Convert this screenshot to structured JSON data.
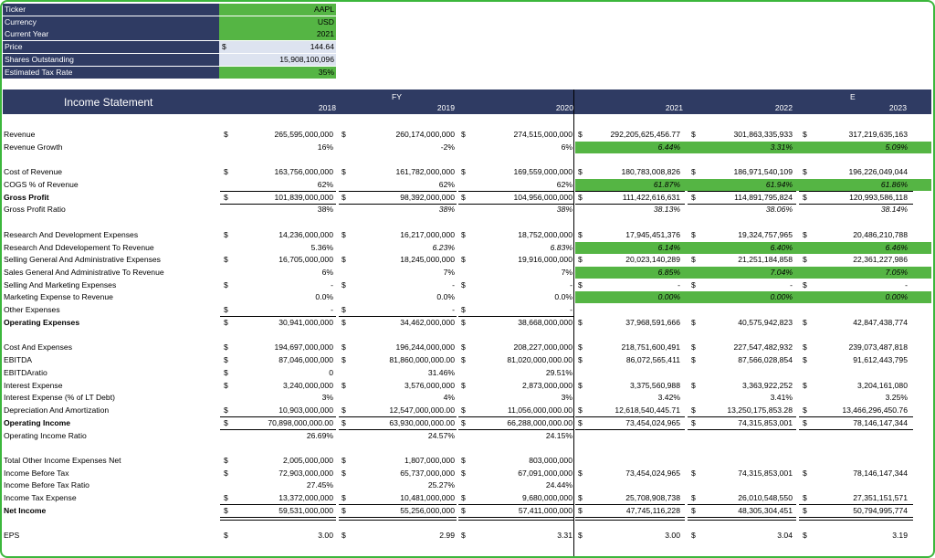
{
  "inputs": [
    {
      "label": "Ticker",
      "value": "AAPL",
      "currency": "",
      "fill": "green"
    },
    {
      "label": "Currency",
      "value": "USD",
      "currency": "",
      "fill": "green"
    },
    {
      "label": "Current Year",
      "value": "2021",
      "currency": "",
      "fill": "green"
    },
    {
      "label": "Price",
      "value": "144.64",
      "currency": "$",
      "fill": "lav"
    },
    {
      "label": "Shares Outstanding",
      "value": "15,908,100,096",
      "currency": "",
      "fill": "lav"
    },
    {
      "label": "Estimated Tax Rate",
      "value": "35%",
      "currency": "",
      "fill": "green"
    }
  ],
  "header": {
    "title": "Income Statement",
    "hist_group": "FY",
    "proj_group": "E",
    "years": [
      "2018",
      "2019",
      "2020",
      "2021",
      "2022",
      "2023"
    ]
  },
  "rows": [
    {
      "label": "Revenue",
      "bold": false,
      "italic": false,
      "cur": [
        1,
        1,
        1,
        1,
        1,
        1
      ],
      "vals": [
        "265,595,000,000",
        "260,174,000,000",
        "274,515,000,000",
        "292,205,625,456.77",
        "301,863,335,933",
        "317,219,635,163"
      ],
      "green": false
    },
    {
      "label": "Revenue Growth",
      "bold": false,
      "italic": false,
      "cur": [
        0,
        0,
        0,
        0,
        0,
        0
      ],
      "vals": [
        "16%",
        "-2%",
        "6%",
        "6.44%",
        "3.31%",
        "5.09%"
      ],
      "green": true,
      "proj_italic": true
    },
    {
      "label": "",
      "spacer": true
    },
    {
      "label": "Cost of Revenue",
      "cur": [
        1,
        1,
        1,
        1,
        1,
        1
      ],
      "vals": [
        "163,756,000,000",
        "161,782,000,000",
        "169,559,000,000",
        "180,783,008,826",
        "186,971,540,109",
        "196,226,049,044"
      ]
    },
    {
      "label": "COGS % of Revenue",
      "cur": [
        0,
        0,
        0,
        0,
        0,
        0
      ],
      "vals": [
        "62%",
        "62%",
        "62%",
        "61.87%",
        "61.94%",
        "61.86%"
      ],
      "green": true,
      "proj_italic": true,
      "under": "single"
    },
    {
      "label": "Gross Profit",
      "bold": true,
      "cur": [
        1,
        1,
        1,
        1,
        1,
        1
      ],
      "vals": [
        "101,839,000,000",
        "98,392,000,000",
        "104,956,000,000",
        "111,422,616,631",
        "114,891,795,824",
        "120,993,586,118"
      ],
      "under": "single"
    },
    {
      "label": "Gross Profit Ratio",
      "cur": [
        0,
        0,
        0,
        0,
        0,
        0
      ],
      "vals": [
        "38%",
        "38%",
        "38%",
        "38.13%",
        "38.06%",
        "38.14%"
      ],
      "hist_italic": [
        false,
        true,
        true
      ],
      "proj_italic": true
    },
    {
      "label": "",
      "spacer": true
    },
    {
      "label": "Research And Development Expenses",
      "cur": [
        1,
        1,
        1,
        1,
        1,
        1
      ],
      "vals": [
        "14,236,000,000",
        "16,217,000,000",
        "18,752,000,000",
        "17,945,451,376",
        "19,324,757,965",
        "20,486,210,788"
      ]
    },
    {
      "label": "Research And Ddevelopement To Revenue",
      "cur": [
        0,
        0,
        0,
        0,
        0,
        0
      ],
      "vals": [
        "5.36%",
        "6.23%",
        "6.83%",
        "6.14%",
        "6.40%",
        "6.46%"
      ],
      "green": true,
      "proj_italic": true,
      "hist_italic": [
        false,
        true,
        true
      ]
    },
    {
      "label": "Selling General And Administrative Expenses",
      "cur": [
        1,
        1,
        1,
        1,
        1,
        1
      ],
      "vals": [
        "16,705,000,000",
        "18,245,000,000",
        "19,916,000,000",
        "20,023,140,289",
        "21,251,184,858",
        "22,361,227,986"
      ]
    },
    {
      "label": "Sales General And Administrative To Revenue",
      "cur": [
        0,
        0,
        0,
        0,
        0,
        0
      ],
      "vals": [
        "6%",
        "7%",
        "7%",
        "6.85%",
        "7.04%",
        "7.05%"
      ],
      "green": true,
      "proj_italic": true
    },
    {
      "label": "Selling And Marketing Expenses",
      "cur": [
        1,
        1,
        1,
        1,
        1,
        1
      ],
      "vals": [
        "-",
        "-",
        "-",
        "-",
        "-",
        "-"
      ],
      "under": "proj"
    },
    {
      "label": "Marketing Expense to Revenue",
      "cur": [
        0,
        0,
        0,
        0,
        0,
        0
      ],
      "vals": [
        "0.0%",
        "0.0%",
        "0.0%",
        "0.00%",
        "0.00%",
        "0.00%"
      ],
      "green": true,
      "proj_italic": true
    },
    {
      "label": "Other Expenses",
      "cur": [
        1,
        1,
        1,
        0,
        0,
        0
      ],
      "vals": [
        "-",
        "-",
        "-",
        "",
        "",
        ""
      ],
      "under": "hist"
    },
    {
      "label": "Operating Expenses",
      "bold": true,
      "boldvals": false,
      "cur": [
        1,
        1,
        1,
        1,
        1,
        1
      ],
      "vals": [
        "30,941,000,000",
        "34,462,000,000",
        "38,668,000,000",
        "37,968,591,666",
        "40,575,942,823",
        "42,847,438,774"
      ]
    },
    {
      "label": "",
      "spacer": true
    },
    {
      "label": "Cost And Expenses",
      "cur": [
        1,
        1,
        1,
        1,
        1,
        1
      ],
      "vals": [
        "194,697,000,000",
        "196,244,000,000",
        "208,227,000,000",
        "218,751,600,491",
        "227,547,482,932",
        "239,073,487,818"
      ]
    },
    {
      "label": "EBITDA",
      "cur": [
        1,
        1,
        1,
        1,
        1,
        1
      ],
      "vals": [
        "87,046,000,000",
        "81,860,000,000.00",
        "81,020,000,000.00",
        "86,072,565,411",
        "87,566,028,854",
        "91,612,443,795"
      ]
    },
    {
      "label": "EBITDAratio",
      "cur": [
        1,
        0,
        0,
        0,
        0,
        0
      ],
      "vals": [
        "0",
        "31.46%",
        "29.51%",
        "",
        "",
        ""
      ]
    },
    {
      "label": "Interest Expense",
      "cur": [
        1,
        1,
        1,
        1,
        1,
        1
      ],
      "vals": [
        "3,240,000,000",
        "3,576,000,000",
        "2,873,000,000",
        "3,375,560,988",
        "3,363,922,252",
        "3,204,161,080"
      ]
    },
    {
      "label": "Interest Expense (% of LT Debt)",
      "cur": [
        0,
        0,
        0,
        0,
        0,
        0
      ],
      "vals": [
        "3%",
        "4%",
        "3%",
        "3.42%",
        "3.41%",
        "3.25%"
      ]
    },
    {
      "label": "Depreciation And Amortization",
      "cur": [
        1,
        1,
        1,
        1,
        1,
        1
      ],
      "vals": [
        "10,903,000,000",
        "12,547,000,000.00",
        "11,056,000,000.00",
        "12,618,540,445.71",
        "13,250,175,853.28",
        "13,466,296,450.76"
      ],
      "under": "single"
    },
    {
      "label": "Operating Income",
      "bold": true,
      "cur": [
        1,
        1,
        1,
        1,
        1,
        1
      ],
      "vals": [
        "70,898,000,000.00",
        "63,930,000,000.00",
        "66,288,000,000.00",
        "73,454,024,965",
        "74,315,853,001",
        "78,146,147,344"
      ],
      "under": "single"
    },
    {
      "label": "Operating Income Ratio",
      "cur": [
        0,
        0,
        0,
        0,
        0,
        0
      ],
      "vals": [
        "26.69%",
        "24.57%",
        "24.15%",
        "",
        "",
        ""
      ]
    },
    {
      "label": "",
      "spacer": true
    },
    {
      "label": "Total Other Income Expenses Net",
      "cur": [
        1,
        1,
        1,
        0,
        0,
        0
      ],
      "vals": [
        "2,005,000,000",
        "1,807,000,000",
        "803,000,000",
        "",
        "",
        ""
      ]
    },
    {
      "label": "Income Before Tax",
      "cur": [
        1,
        1,
        1,
        1,
        1,
        1
      ],
      "vals": [
        "72,903,000,000",
        "65,737,000,000",
        "67,091,000,000",
        "73,454,024,965",
        "74,315,853,001",
        "78,146,147,344"
      ]
    },
    {
      "label": "Income Before Tax Ratio",
      "cur": [
        0,
        0,
        0,
        0,
        0,
        0
      ],
      "vals": [
        "27.45%",
        "25.27%",
        "24.44%",
        "",
        "",
        ""
      ]
    },
    {
      "label": "Income Tax Expense",
      "cur": [
        1,
        1,
        1,
        1,
        1,
        1
      ],
      "vals": [
        "13,372,000,000",
        "10,481,000,000",
        "9,680,000,000",
        "25,708,908,738",
        "26,010,548,550",
        "27,351,151,571"
      ],
      "under": "single"
    },
    {
      "label": "Net Income",
      "bold": true,
      "cur": [
        1,
        1,
        1,
        1,
        1,
        1
      ],
      "vals": [
        "59,531,000,000",
        "55,256,000,000",
        "57,411,000,000",
        "47,745,116,228",
        "48,305,304,451",
        "50,794,995,774"
      ],
      "under": "double"
    },
    {
      "label": "",
      "spacer": true
    },
    {
      "label": "EPS",
      "cur": [
        1,
        1,
        1,
        1,
        1,
        1
      ],
      "vals": [
        "3.00",
        "2.99",
        "3.31",
        "3.00",
        "3.04",
        "3.19"
      ]
    }
  ]
}
